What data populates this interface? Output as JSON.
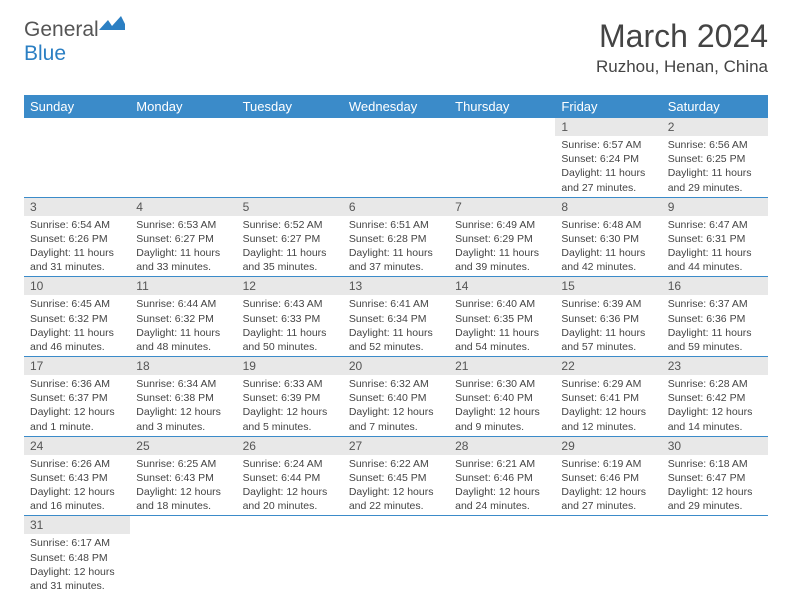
{
  "logo": {
    "text1": "General",
    "text2": "Blue"
  },
  "title": "March 2024",
  "location": "Ruzhou, Henan, China",
  "colors": {
    "header_bg": "#3b8bc9",
    "header_text": "#ffffff",
    "daynum_bg": "#e8e8e8",
    "row_border": "#3b8bc9",
    "logo_blue": "#2b7fc3"
  },
  "day_names": [
    "Sunday",
    "Monday",
    "Tuesday",
    "Wednesday",
    "Thursday",
    "Friday",
    "Saturday"
  ],
  "weeks": [
    [
      null,
      null,
      null,
      null,
      null,
      {
        "n": "1",
        "sr": "6:57 AM",
        "ss": "6:24 PM",
        "dl": "11 hours and 27 minutes."
      },
      {
        "n": "2",
        "sr": "6:56 AM",
        "ss": "6:25 PM",
        "dl": "11 hours and 29 minutes."
      }
    ],
    [
      {
        "n": "3",
        "sr": "6:54 AM",
        "ss": "6:26 PM",
        "dl": "11 hours and 31 minutes."
      },
      {
        "n": "4",
        "sr": "6:53 AM",
        "ss": "6:27 PM",
        "dl": "11 hours and 33 minutes."
      },
      {
        "n": "5",
        "sr": "6:52 AM",
        "ss": "6:27 PM",
        "dl": "11 hours and 35 minutes."
      },
      {
        "n": "6",
        "sr": "6:51 AM",
        "ss": "6:28 PM",
        "dl": "11 hours and 37 minutes."
      },
      {
        "n": "7",
        "sr": "6:49 AM",
        "ss": "6:29 PM",
        "dl": "11 hours and 39 minutes."
      },
      {
        "n": "8",
        "sr": "6:48 AM",
        "ss": "6:30 PM",
        "dl": "11 hours and 42 minutes."
      },
      {
        "n": "9",
        "sr": "6:47 AM",
        "ss": "6:31 PM",
        "dl": "11 hours and 44 minutes."
      }
    ],
    [
      {
        "n": "10",
        "sr": "6:45 AM",
        "ss": "6:32 PM",
        "dl": "11 hours and 46 minutes."
      },
      {
        "n": "11",
        "sr": "6:44 AM",
        "ss": "6:32 PM",
        "dl": "11 hours and 48 minutes."
      },
      {
        "n": "12",
        "sr": "6:43 AM",
        "ss": "6:33 PM",
        "dl": "11 hours and 50 minutes."
      },
      {
        "n": "13",
        "sr": "6:41 AM",
        "ss": "6:34 PM",
        "dl": "11 hours and 52 minutes."
      },
      {
        "n": "14",
        "sr": "6:40 AM",
        "ss": "6:35 PM",
        "dl": "11 hours and 54 minutes."
      },
      {
        "n": "15",
        "sr": "6:39 AM",
        "ss": "6:36 PM",
        "dl": "11 hours and 57 minutes."
      },
      {
        "n": "16",
        "sr": "6:37 AM",
        "ss": "6:36 PM",
        "dl": "11 hours and 59 minutes."
      }
    ],
    [
      {
        "n": "17",
        "sr": "6:36 AM",
        "ss": "6:37 PM",
        "dl": "12 hours and 1 minute."
      },
      {
        "n": "18",
        "sr": "6:34 AM",
        "ss": "6:38 PM",
        "dl": "12 hours and 3 minutes."
      },
      {
        "n": "19",
        "sr": "6:33 AM",
        "ss": "6:39 PM",
        "dl": "12 hours and 5 minutes."
      },
      {
        "n": "20",
        "sr": "6:32 AM",
        "ss": "6:40 PM",
        "dl": "12 hours and 7 minutes."
      },
      {
        "n": "21",
        "sr": "6:30 AM",
        "ss": "6:40 PM",
        "dl": "12 hours and 9 minutes."
      },
      {
        "n": "22",
        "sr": "6:29 AM",
        "ss": "6:41 PM",
        "dl": "12 hours and 12 minutes."
      },
      {
        "n": "23",
        "sr": "6:28 AM",
        "ss": "6:42 PM",
        "dl": "12 hours and 14 minutes."
      }
    ],
    [
      {
        "n": "24",
        "sr": "6:26 AM",
        "ss": "6:43 PM",
        "dl": "12 hours and 16 minutes."
      },
      {
        "n": "25",
        "sr": "6:25 AM",
        "ss": "6:43 PM",
        "dl": "12 hours and 18 minutes."
      },
      {
        "n": "26",
        "sr": "6:24 AM",
        "ss": "6:44 PM",
        "dl": "12 hours and 20 minutes."
      },
      {
        "n": "27",
        "sr": "6:22 AM",
        "ss": "6:45 PM",
        "dl": "12 hours and 22 minutes."
      },
      {
        "n": "28",
        "sr": "6:21 AM",
        "ss": "6:46 PM",
        "dl": "12 hours and 24 minutes."
      },
      {
        "n": "29",
        "sr": "6:19 AM",
        "ss": "6:46 PM",
        "dl": "12 hours and 27 minutes."
      },
      {
        "n": "30",
        "sr": "6:18 AM",
        "ss": "6:47 PM",
        "dl": "12 hours and 29 minutes."
      }
    ],
    [
      {
        "n": "31",
        "sr": "6:17 AM",
        "ss": "6:48 PM",
        "dl": "12 hours and 31 minutes."
      },
      null,
      null,
      null,
      null,
      null,
      null
    ]
  ],
  "labels": {
    "sunrise": "Sunrise:",
    "sunset": "Sunset:",
    "daylight": "Daylight:"
  }
}
